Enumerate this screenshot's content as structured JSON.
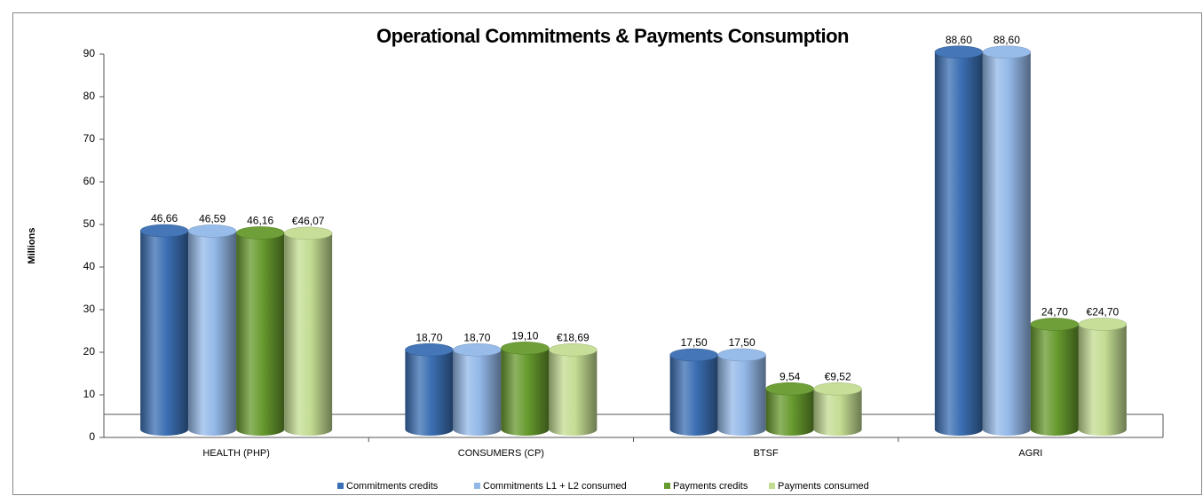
{
  "chart_data": {
    "type": "bar",
    "title": "Operational Commitments & Payments Consumption",
    "y_label": "Millions",
    "categories": [
      "HEALTH (PHP)",
      "CONSUMERS (CP)",
      "BTSF",
      "AGRI"
    ],
    "series": [
      {
        "name": "Commitments credits",
        "color": "#3b6fb3",
        "values": [
          46.66,
          18.7,
          17.5,
          88.6
        ],
        "value_labels": [
          "46,66",
          "18,70",
          "17,50",
          "88,60"
        ]
      },
      {
        "name": "Commitments L1 + L2 consumed",
        "color": "#93b8e8",
        "values": [
          46.59,
          18.7,
          17.5,
          88.6
        ],
        "value_labels": [
          "46,59",
          "18,70",
          "17,50",
          "88,60"
        ]
      },
      {
        "name": "Payments credits",
        "color": "#679a2e",
        "values": [
          46.16,
          19.1,
          9.54,
          24.7
        ],
        "value_labels": [
          "46,16",
          "19,10",
          "9,54",
          "24,70"
        ]
      },
      {
        "name": "Payments consumed",
        "color": "#c3dc92",
        "values": [
          46.07,
          18.69,
          9.52,
          24.7
        ],
        "value_labels": [
          "€46,07",
          "€18,69",
          "€9,52",
          "€24,70"
        ]
      }
    ],
    "ylim": [
      0,
      90
    ],
    "yticks": [
      0,
      10,
      20,
      30,
      40,
      50,
      60,
      70,
      80,
      90
    ]
  }
}
